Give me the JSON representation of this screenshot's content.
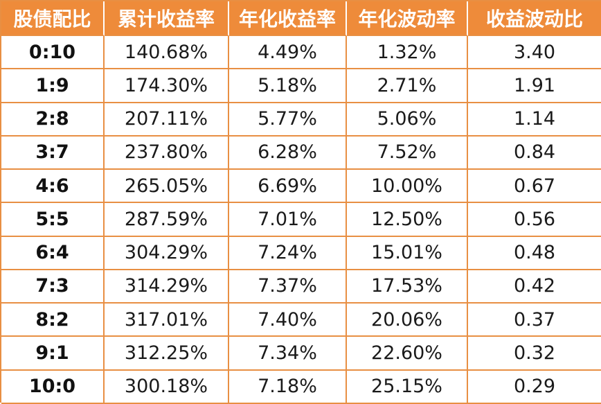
{
  "colors": {
    "header_bg": "#ee8b3a",
    "border": "#e88f43",
    "header_text": "#ffffff",
    "cell_text": "#1a1a1a"
  },
  "table": {
    "headers": [
      "股债配比",
      "累计收益率",
      "年化收益率",
      "年化波动率",
      "收益波动比"
    ],
    "rows": [
      [
        "0:10",
        "140.68%",
        "4.49%",
        "1.32%",
        "3.40"
      ],
      [
        "1:9",
        "174.30%",
        "5.18%",
        "2.71%",
        "1.91"
      ],
      [
        "2:8",
        "207.11%",
        "5.77%",
        "5.06%",
        "1.14"
      ],
      [
        "3:7",
        "237.80%",
        "6.28%",
        "7.52%",
        "0.84"
      ],
      [
        "4:6",
        "265.05%",
        "6.69%",
        "10.00%",
        "0.67"
      ],
      [
        "5:5",
        "287.59%",
        "7.01%",
        "12.50%",
        "0.56"
      ],
      [
        "6:4",
        "304.29%",
        "7.24%",
        "15.01%",
        "0.48"
      ],
      [
        "7:3",
        "314.29%",
        "7.37%",
        "17.53%",
        "0.42"
      ],
      [
        "8:2",
        "317.01%",
        "7.40%",
        "20.06%",
        "0.37"
      ],
      [
        "9:1",
        "312.25%",
        "7.34%",
        "22.60%",
        "0.32"
      ],
      [
        "10:0",
        "300.18%",
        "7.18%",
        "25.15%",
        "0.29"
      ]
    ]
  }
}
